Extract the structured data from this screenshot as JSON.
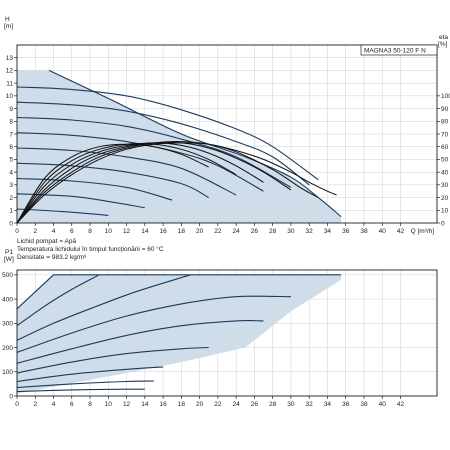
{
  "colors": {
    "envelope_fill": "#cfdce9",
    "curve": "#1b3a5c",
    "axis": "#000000",
    "grid": "#c4c4c4",
    "frame": "#000000"
  },
  "info": {
    "model": "MAGNA3 50-120 F N",
    "liquid": "Lichid pompat = Apă",
    "temperature": "Temperatura lichidului în timpul funcționării = 60 °C",
    "density": "Densitate = 983.2 kg/m³"
  },
  "chart_data": [
    {
      "type": "line",
      "xlabel": "Q [m³/h]",
      "ylabel": "H [m]",
      "y2label": "eta [%]",
      "ylabel_top": "H",
      "ylabel_unit": "[m]",
      "y2label_top": "eta",
      "y2label_unit": "[%]",
      "xlim": [
        0,
        46
      ],
      "ylim": [
        0,
        14
      ],
      "y2lim": [
        0,
        140
      ],
      "xticks": [
        0,
        2,
        4,
        6,
        8,
        10,
        12,
        14,
        16,
        18,
        20,
        22,
        24,
        26,
        28,
        30,
        32,
        34,
        36,
        38,
        40,
        42
      ],
      "xticks_label": [
        "0",
        "2",
        "4",
        "6",
        "8",
        "10",
        "12",
        "14",
        "16",
        "18",
        "20",
        "22",
        "24",
        "26",
        "28",
        "30",
        "32",
        "34",
        "36",
        "38",
        "40",
        "42"
      ],
      "yticks": [
        0,
        1,
        2,
        3,
        4,
        5,
        6,
        7,
        8,
        9,
        10,
        11,
        12,
        13
      ],
      "y2ticks": [
        0,
        10,
        20,
        30,
        40,
        50,
        60,
        70,
        80,
        90,
        100
      ],
      "envelope": [
        [
          0,
          12
        ],
        [
          3.5,
          12
        ],
        [
          10,
          9.8
        ],
        [
          18,
          7.0
        ],
        [
          25,
          5.2
        ],
        [
          30,
          3.6
        ],
        [
          33,
          2.0
        ],
        [
          35.5,
          0.5
        ],
        [
          35.5,
          0
        ],
        [
          0,
          0
        ]
      ],
      "series": [
        {
          "values": [
            [
              3.5,
              12
            ],
            [
              10,
              9.8
            ],
            [
              18,
              7.0
            ],
            [
              25,
              5.2
            ],
            [
              30,
              3.6
            ],
            [
              33,
              2.0
            ],
            [
              35.5,
              0.5
            ]
          ]
        },
        {
          "values": [
            [
              0,
              10.7
            ],
            [
              6,
              10.5
            ],
            [
              12,
              10.0
            ],
            [
              18,
              8.9
            ],
            [
              24,
              7.4
            ],
            [
              28,
              6.0
            ],
            [
              33,
              3.4
            ]
          ]
        },
        {
          "values": [
            [
              0,
              9.5
            ],
            [
              6,
              9.3
            ],
            [
              12,
              8.8
            ],
            [
              18,
              7.8
            ],
            [
              24,
              6.4
            ],
            [
              28,
              5.2
            ],
            [
              32,
              3.0
            ]
          ]
        },
        {
          "values": [
            [
              0,
              8.3
            ],
            [
              6,
              8.1
            ],
            [
              12,
              7.6
            ],
            [
              18,
              6.6
            ],
            [
              24,
              5.2
            ],
            [
              30,
              2.8
            ]
          ]
        },
        {
          "values": [
            [
              0,
              7.1
            ],
            [
              6,
              6.9
            ],
            [
              12,
              6.4
            ],
            [
              18,
              5.5
            ],
            [
              22,
              4.5
            ],
            [
              27,
              2.5
            ]
          ]
        },
        {
          "values": [
            [
              0,
              5.9
            ],
            [
              6,
              5.7
            ],
            [
              12,
              5.2
            ],
            [
              18,
              4.3
            ],
            [
              24,
              2.2
            ]
          ]
        },
        {
          "values": [
            [
              0,
              4.7
            ],
            [
              6,
              4.5
            ],
            [
              12,
              4.0
            ],
            [
              18,
              3.1
            ],
            [
              21,
              2.0
            ]
          ]
        },
        {
          "values": [
            [
              0,
              3.5
            ],
            [
              6,
              3.3
            ],
            [
              12,
              2.8
            ],
            [
              17,
              1.8
            ]
          ]
        },
        {
          "values": [
            [
              0,
              2.3
            ],
            [
              6,
              2.1
            ],
            [
              10,
              1.7
            ],
            [
              14,
              1.2
            ]
          ]
        },
        {
          "values": [
            [
              0,
              1.1
            ],
            [
              5,
              0.9
            ],
            [
              10,
              0.6
            ]
          ]
        }
      ],
      "efficiency": [
        {
          "values": [
            [
              0,
              0
            ],
            [
              3,
              22
            ],
            [
              6,
              38
            ],
            [
              9,
              50
            ],
            [
              12,
              58
            ],
            [
              15,
              62
            ],
            [
              18,
              63
            ],
            [
              21,
              62
            ],
            [
              24,
              57
            ],
            [
              27,
              50
            ],
            [
              30,
              40
            ],
            [
              32,
              32
            ],
            [
              34,
              25
            ],
            [
              35,
              22
            ]
          ]
        },
        {
          "values": [
            [
              0,
              0
            ],
            [
              3,
              24
            ],
            [
              6,
              40
            ],
            [
              9,
              52
            ],
            [
              12,
              59
            ],
            [
              15,
              63
            ],
            [
              18,
              64
            ],
            [
              21,
              62
            ],
            [
              24,
              56
            ],
            [
              28,
              42
            ],
            [
              31,
              28
            ],
            [
              33,
              20
            ]
          ]
        },
        {
          "values": [
            [
              0,
              0
            ],
            [
              3,
              26
            ],
            [
              6,
              43
            ],
            [
              9,
              54
            ],
            [
              12,
              60
            ],
            [
              15,
              63
            ],
            [
              18,
              63
            ],
            [
              21,
              59
            ],
            [
              24,
              51
            ],
            [
              27,
              40
            ],
            [
              30,
              26
            ]
          ]
        },
        {
          "values": [
            [
              0,
              0
            ],
            [
              3,
              29
            ],
            [
              6,
              46
            ],
            [
              9,
              56
            ],
            [
              12,
              61
            ],
            [
              15,
              63
            ],
            [
              18,
              61
            ],
            [
              21,
              55
            ],
            [
              24,
              45
            ],
            [
              27,
              32
            ]
          ]
        },
        {
          "values": [
            [
              0,
              0
            ],
            [
              3,
              32
            ],
            [
              6,
              49
            ],
            [
              9,
              58
            ],
            [
              12,
              62
            ],
            [
              15,
              62
            ],
            [
              18,
              58
            ],
            [
              21,
              50
            ],
            [
              24,
              38
            ]
          ]
        },
        {
          "values": [
            [
              0,
              0
            ],
            [
              3,
              35
            ],
            [
              6,
              52
            ],
            [
              9,
              60
            ],
            [
              12,
              62
            ],
            [
              15,
              60
            ],
            [
              18,
              54
            ],
            [
              21,
              44
            ]
          ]
        }
      ]
    },
    {
      "type": "line",
      "xlabel": "",
      "ylabel": "P1 [W]",
      "ylabel_top": "P1",
      "ylabel_unit": "[W]",
      "xlim": [
        0,
        46
      ],
      "ylim": [
        0,
        520
      ],
      "xticks": [
        0,
        2,
        4,
        6,
        8,
        10,
        12,
        14,
        16,
        18,
        20,
        22,
        24,
        26,
        28,
        30,
        32,
        34,
        36,
        38,
        40,
        42
      ],
      "xticks_label": [
        "0",
        "2",
        "4",
        "6",
        "8",
        "10",
        "12",
        "14",
        "16",
        "18",
        "20",
        "22",
        "24",
        "26",
        "28",
        "30",
        "32",
        "34",
        "36",
        "38",
        "40",
        "42"
      ],
      "yticks": [
        0,
        100,
        200,
        300,
        400,
        500
      ],
      "envelope": [
        [
          0,
          360
        ],
        [
          4,
          500
        ],
        [
          35.5,
          500
        ],
        [
          35.5,
          480
        ],
        [
          30,
          350
        ],
        [
          25,
          200
        ],
        [
          18,
          140
        ],
        [
          12,
          95
        ],
        [
          0,
          10
        ]
      ],
      "series": [
        {
          "values": [
            [
              4,
              500
            ],
            [
              35.5,
              500
            ]
          ]
        },
        {
          "values": [
            [
              0,
              360
            ],
            [
              2,
              430
            ],
            [
              4,
              500
            ]
          ]
        },
        {
          "values": [
            [
              0,
              290
            ],
            [
              3,
              370
            ],
            [
              6,
              440
            ],
            [
              9,
              500
            ]
          ]
        },
        {
          "values": [
            [
              0,
              230
            ],
            [
              4,
              300
            ],
            [
              8,
              360
            ],
            [
              13,
              430
            ],
            [
              19,
              500
            ]
          ]
        },
        {
          "values": [
            [
              0,
              180
            ],
            [
              6,
              260
            ],
            [
              12,
              330
            ],
            [
              18,
              380
            ],
            [
              24,
              410
            ],
            [
              30,
              410
            ]
          ]
        },
        {
          "values": [
            [
              0,
              135
            ],
            [
              6,
              195
            ],
            [
              12,
              250
            ],
            [
              18,
              290
            ],
            [
              24,
              310
            ],
            [
              27,
              310
            ]
          ]
        },
        {
          "values": [
            [
              0,
              95
            ],
            [
              6,
              140
            ],
            [
              12,
              175
            ],
            [
              18,
              195
            ],
            [
              21,
              200
            ]
          ]
        },
        {
          "values": [
            [
              0,
              60
            ],
            [
              6,
              90
            ],
            [
              12,
              110
            ],
            [
              16,
              120
            ]
          ]
        },
        {
          "values": [
            [
              0,
              35
            ],
            [
              6,
              50
            ],
            [
              12,
              60
            ],
            [
              15,
              62
            ]
          ]
        },
        {
          "values": [
            [
              0,
              18
            ],
            [
              6,
              25
            ],
            [
              12,
              28
            ],
            [
              14,
              28
            ]
          ]
        }
      ]
    }
  ]
}
